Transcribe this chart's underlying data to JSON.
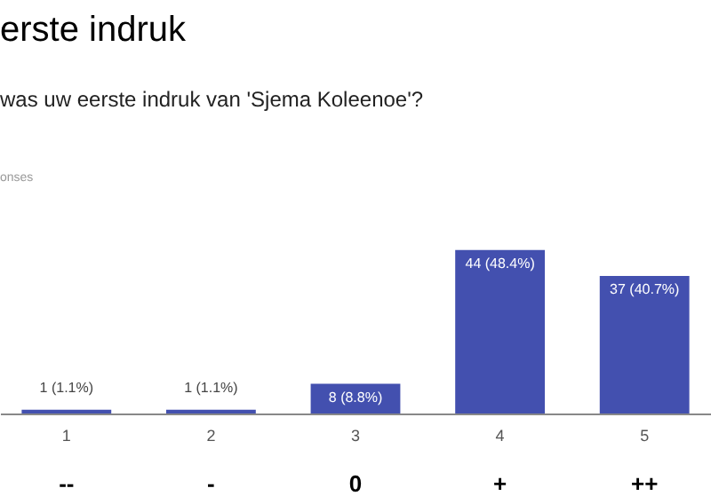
{
  "chart_data": {
    "type": "bar",
    "title": "erste indruk",
    "subtitle": "was uw eerste indruk van 'Sjema Koleenoe'?",
    "annotations": [
      "onses",
      "--",
      "-",
      "0",
      "+",
      "++"
    ],
    "categories": [
      "1",
      "2",
      "3",
      "4",
      "5"
    ],
    "values": [
      1,
      1,
      8,
      44,
      37
    ],
    "value_labels": [
      "1 (1.1%)",
      "1 (1.1%)",
      "8 (8.8%)",
      "44 (48.4%)",
      "37 (40.7%)"
    ],
    "color": "#4350af",
    "tick_labels": "x"
  }
}
